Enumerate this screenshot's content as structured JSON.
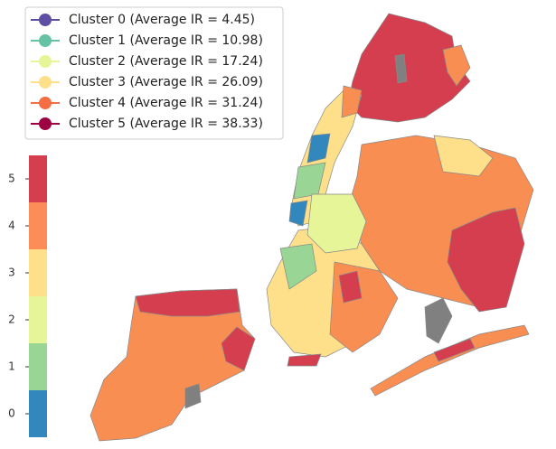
{
  "legend": {
    "entries": [
      {
        "label": "Cluster 0 (Average IR = 4.45)",
        "color": "#5e4fa2"
      },
      {
        "label": "Cluster 1 (Average IR = 10.98)",
        "color": "#66c2a5"
      },
      {
        "label": "Cluster 2 (Average IR = 17.24)",
        "color": "#e6f598"
      },
      {
        "label": "Cluster 3 (Average IR = 26.09)",
        "color": "#fee08b"
      },
      {
        "label": "Cluster 4 (Average IR = 31.24)",
        "color": "#f46d43"
      },
      {
        "label": "Cluster 5 (Average IR = 38.33)",
        "color": "#9e0142"
      }
    ]
  },
  "colorbar": {
    "ticks": [
      0,
      1,
      2,
      3,
      4,
      5
    ],
    "colors": [
      "#3288bd",
      "#99d594",
      "#e6f598",
      "#fee08b",
      "#fc8d59",
      "#d53e4f"
    ]
  }
}
